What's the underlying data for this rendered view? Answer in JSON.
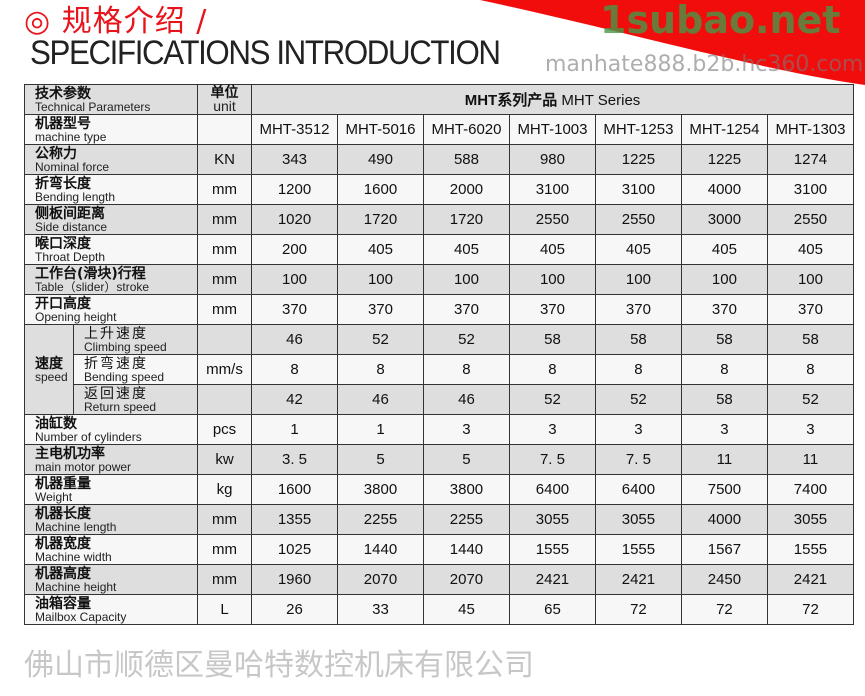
{
  "title_cn": "◎ 规格介绍 /",
  "title_en": "SPECIFICATIONS INTRODUCTION",
  "accent": "#e8141b",
  "header": {
    "param_cn": "技术参数",
    "param_en": "Technical Parameters",
    "unit_cn": "单位",
    "unit_en": "unit",
    "series_cn": "MHT系列产品",
    "series_en": "MHT Series"
  },
  "type_row": {
    "cn": "机器型号",
    "en": "machine type",
    "models": [
      "MHT-3512",
      "MHT-5016",
      "MHT-6020",
      "MHT-1003",
      "MHT-1253",
      "MHT-1254",
      "MHT-1303"
    ]
  },
  "rows_a": [
    {
      "cn": "公称力",
      "en": "Nominal force",
      "unit": "KN",
      "values": [
        "343",
        "490",
        "588",
        "980",
        "1225",
        "1225",
        "1274"
      ]
    },
    {
      "cn": "折弯长度",
      "en": "Bending length",
      "unit": "mm",
      "values": [
        "1200",
        "1600",
        "2000",
        "3100",
        "3100",
        "4000",
        "3100"
      ]
    },
    {
      "cn": "侧板间距离",
      "en": "Side distance",
      "unit": "mm",
      "values": [
        "1020",
        "1720",
        "1720",
        "2550",
        "2550",
        "3000",
        "2550"
      ]
    },
    {
      "cn": "喉口深度",
      "en": "Throat Depth",
      "unit": "mm",
      "values": [
        "200",
        "405",
        "405",
        "405",
        "405",
        "405",
        "405"
      ]
    },
    {
      "cn": "工作台(滑块)行程",
      "en": "Table（slider）stroke",
      "unit": "mm",
      "values": [
        "100",
        "100",
        "100",
        "100",
        "100",
        "100",
        "100"
      ]
    },
    {
      "cn": "开口高度",
      "en": "Opening height",
      "unit": "mm",
      "values": [
        "370",
        "370",
        "370",
        "370",
        "370",
        "370",
        "370"
      ]
    }
  ],
  "speed": {
    "cn": "速度",
    "en": "speed",
    "unit": "mm/s",
    "rows": [
      {
        "cn": "上升速度",
        "en": "Climbing speed",
        "values": [
          "46",
          "52",
          "52",
          "58",
          "58",
          "58",
          "58"
        ]
      },
      {
        "cn": "折弯速度",
        "en": "Bending speed",
        "values": [
          "8",
          "8",
          "8",
          "8",
          "8",
          "8",
          "8"
        ]
      },
      {
        "cn": "返回速度",
        "en": "Return speed",
        "values": [
          "42",
          "46",
          "46",
          "52",
          "52",
          "58",
          "52"
        ]
      }
    ]
  },
  "rows_b": [
    {
      "cn": "油缸数",
      "en": "Number of cylinders",
      "unit": "pcs",
      "values": [
        "1",
        "1",
        "3",
        "3",
        "3",
        "3",
        "3"
      ]
    },
    {
      "cn": "主电机功率",
      "en": "main motor power",
      "unit": "kw",
      "values": [
        "3. 5",
        "5",
        "5",
        "7. 5",
        "7. 5",
        "11",
        "11"
      ]
    },
    {
      "cn": "机器重量",
      "en": "Weight",
      "unit": "kg",
      "values": [
        "1600",
        "3800",
        "3800",
        "6400",
        "6400",
        "7500",
        "7400"
      ]
    },
    {
      "cn": "机器长度",
      "en": "Machine length",
      "unit": "mm",
      "values": [
        "1355",
        "2255",
        "2255",
        "3055",
        "3055",
        "4000",
        "3055"
      ]
    },
    {
      "cn": "机器宽度",
      "en": "Machine width",
      "unit": "mm",
      "values": [
        "1025",
        "1440",
        "1440",
        "1555",
        "1555",
        "1567",
        "1555"
      ]
    },
    {
      "cn": "机器高度",
      "en": "Machine height",
      "unit": "mm",
      "values": [
        "1960",
        "2070",
        "2070",
        "2421",
        "2421",
        "2450",
        "2421"
      ]
    },
    {
      "cn": "油箱容量",
      "en": "Mailbox Capacity",
      "unit": "L",
      "values": [
        "26",
        "33",
        "45",
        "65",
        "72",
        "72",
        "72"
      ]
    }
  ],
  "watermarks": [
    "佛山市顺德区曼哈特数控机床有限公司",
    "1subao.net",
    "manhate888.b2b.hc360.com"
  ]
}
